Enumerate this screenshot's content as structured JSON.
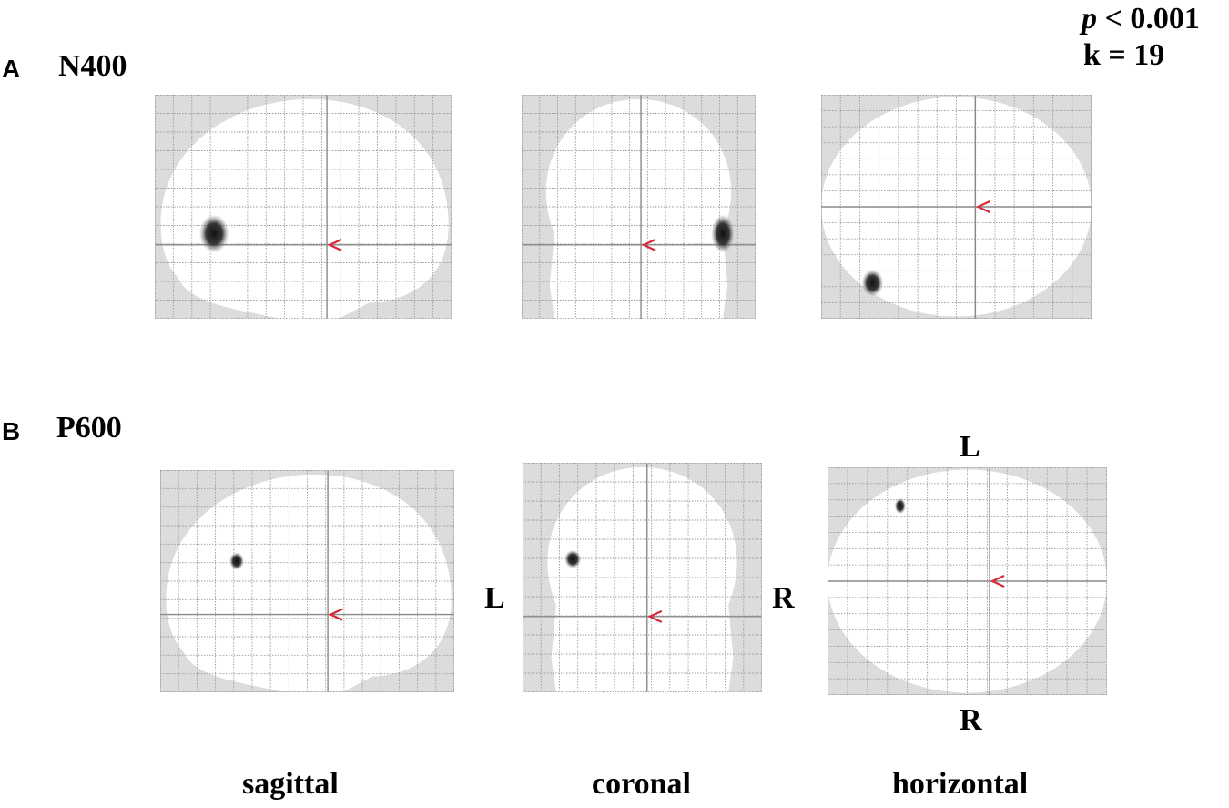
{
  "stats": {
    "p_symbol": "p",
    "p_value": " < 0.001",
    "k_label": "k = 19"
  },
  "panels": [
    {
      "letter": "A",
      "title": "N400"
    },
    {
      "letter": "B",
      "title": "P600"
    }
  ],
  "orientation": {
    "left": "L",
    "right": "R"
  },
  "views": [
    "sagittal",
    "coronal",
    "horizontal"
  ],
  "colors": {
    "grid": "#9a9a9a",
    "outside_brain": "#dcdcdc",
    "cursor": "#d8283a",
    "blob": "#111111"
  },
  "icons": {
    "cursor": "red-chevron-cursor-icon"
  }
}
